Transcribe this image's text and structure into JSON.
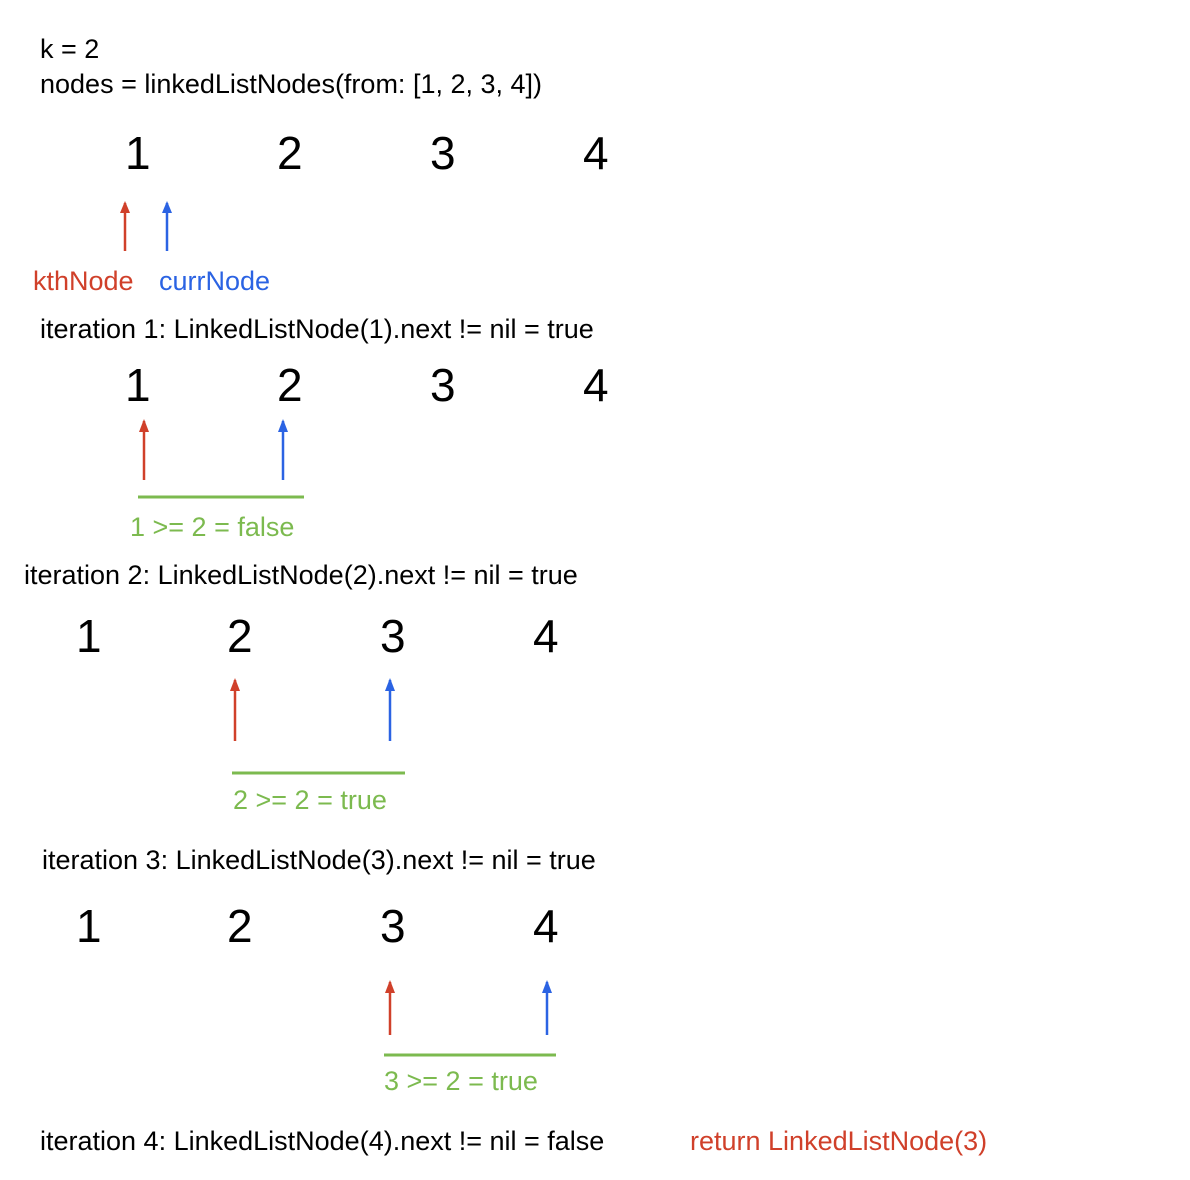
{
  "colors": {
    "kth": "#d0402a",
    "curr": "#2b63e3",
    "green": "#7cba4f",
    "text": "#000000"
  },
  "header": {
    "k_line": "k = 2",
    "nodes_line": "nodes = linkedListNodes(from: [1, 2, 3, 4])"
  },
  "labels": {
    "kth_node": "kthNode",
    "curr_node": "currNode"
  },
  "node_values": [
    "1",
    "2",
    "3",
    "4"
  ],
  "iterations": [
    {
      "text": "iteration 1: LinkedListNode(1).next != nil = true",
      "comparison": "1 >= 2 = false"
    },
    {
      "text": "iteration 2: LinkedListNode(2).next != nil = true",
      "comparison": "2 >= 2 = true"
    },
    {
      "text": "iteration 3: LinkedListNode(3).next != nil = true",
      "comparison": "3 >= 2 = true"
    },
    {
      "text": "iteration 4: LinkedListNode(4).next != nil = false",
      "result": "return LinkedListNode(3)"
    }
  ]
}
